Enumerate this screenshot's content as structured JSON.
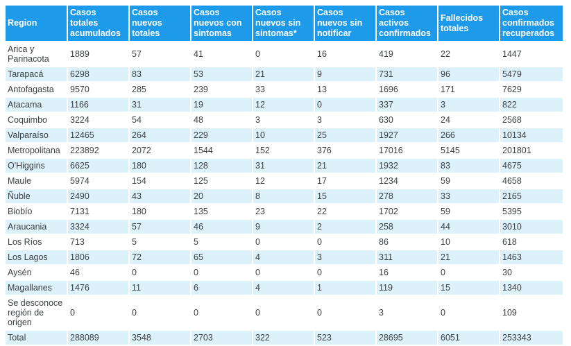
{
  "colors": {
    "header_bg": "#1d9bea",
    "header_text": "#ffffff",
    "row_odd_bg": "#ffffff",
    "row_even_bg": "#ddf1fb",
    "body_text": "#3c4043",
    "page_bg": "#ffffff",
    "bottom_strip": "#ebebeb"
  },
  "chart_data": {
    "type": "table",
    "title": "",
    "columns": [
      "Region",
      "Casos totales acumulados",
      "Casos nuevos totales",
      "Casos nuevos con sintomas",
      "Casos nuevos sin sintomas*",
      "Casos nuevos sin notificar",
      "Casos activos confirmados",
      "Fallecidos totales",
      "Casos confirmados recuperados"
    ],
    "rows": [
      [
        "Arica y Parinacota",
        "1889",
        "57",
        "41",
        "0",
        "16",
        "419",
        "22",
        "1447"
      ],
      [
        "Tarapacá",
        "6298",
        "83",
        "53",
        "21",
        "9",
        "731",
        "96",
        "5479"
      ],
      [
        "Antofagasta",
        "9570",
        "285",
        "239",
        "33",
        "13",
        "1696",
        "171",
        "7629"
      ],
      [
        "Atacama",
        "1166",
        "31",
        "19",
        "12",
        "0",
        "337",
        "3",
        "822"
      ],
      [
        "Coquimbo",
        "3224",
        "54",
        "48",
        "3",
        "3",
        "630",
        "24",
        "2568"
      ],
      [
        "Valparaíso",
        "12465",
        "264",
        "229",
        "10",
        "25",
        "1927",
        "266",
        "10134"
      ],
      [
        "Metropolitana",
        "223892",
        "2072",
        "1544",
        "152",
        "376",
        "17016",
        "5145",
        "201801"
      ],
      [
        "O'Higgins",
        "6625",
        "180",
        "128",
        "31",
        "21",
        "1932",
        "83",
        "4675"
      ],
      [
        "Maule",
        "5974",
        "154",
        "125",
        "12",
        "17",
        "1234",
        "59",
        "4658"
      ],
      [
        "Ñuble",
        "2490",
        "43",
        "20",
        "8",
        "15",
        "278",
        "33",
        "2165"
      ],
      [
        "Biobío",
        "7131",
        "180",
        "135",
        "23",
        "22",
        "1702",
        "59",
        "5395"
      ],
      [
        "Araucania",
        "3324",
        "57",
        "46",
        "9",
        "2",
        "258",
        "44",
        "3010"
      ],
      [
        "Los Ríos",
        "713",
        "5",
        "5",
        "0",
        "0",
        "86",
        "10",
        "618"
      ],
      [
        "Los Lagos",
        "1806",
        "72",
        "65",
        "4",
        "3",
        "311",
        "21",
        "1463"
      ],
      [
        "Aysén",
        "46",
        "0",
        "0",
        "0",
        "0",
        "16",
        "0",
        "30"
      ],
      [
        "Magallanes",
        "1476",
        "11",
        "6",
        "4",
        "1",
        "119",
        "15",
        "1340"
      ],
      [
        "Se desconoce región de origen",
        "0",
        "0",
        "0",
        "0",
        "0",
        "3",
        "0",
        "109"
      ],
      [
        "Total",
        "288089",
        "3548",
        "2703",
        "322",
        "523",
        "28695",
        "6051",
        "253343"
      ]
    ]
  }
}
